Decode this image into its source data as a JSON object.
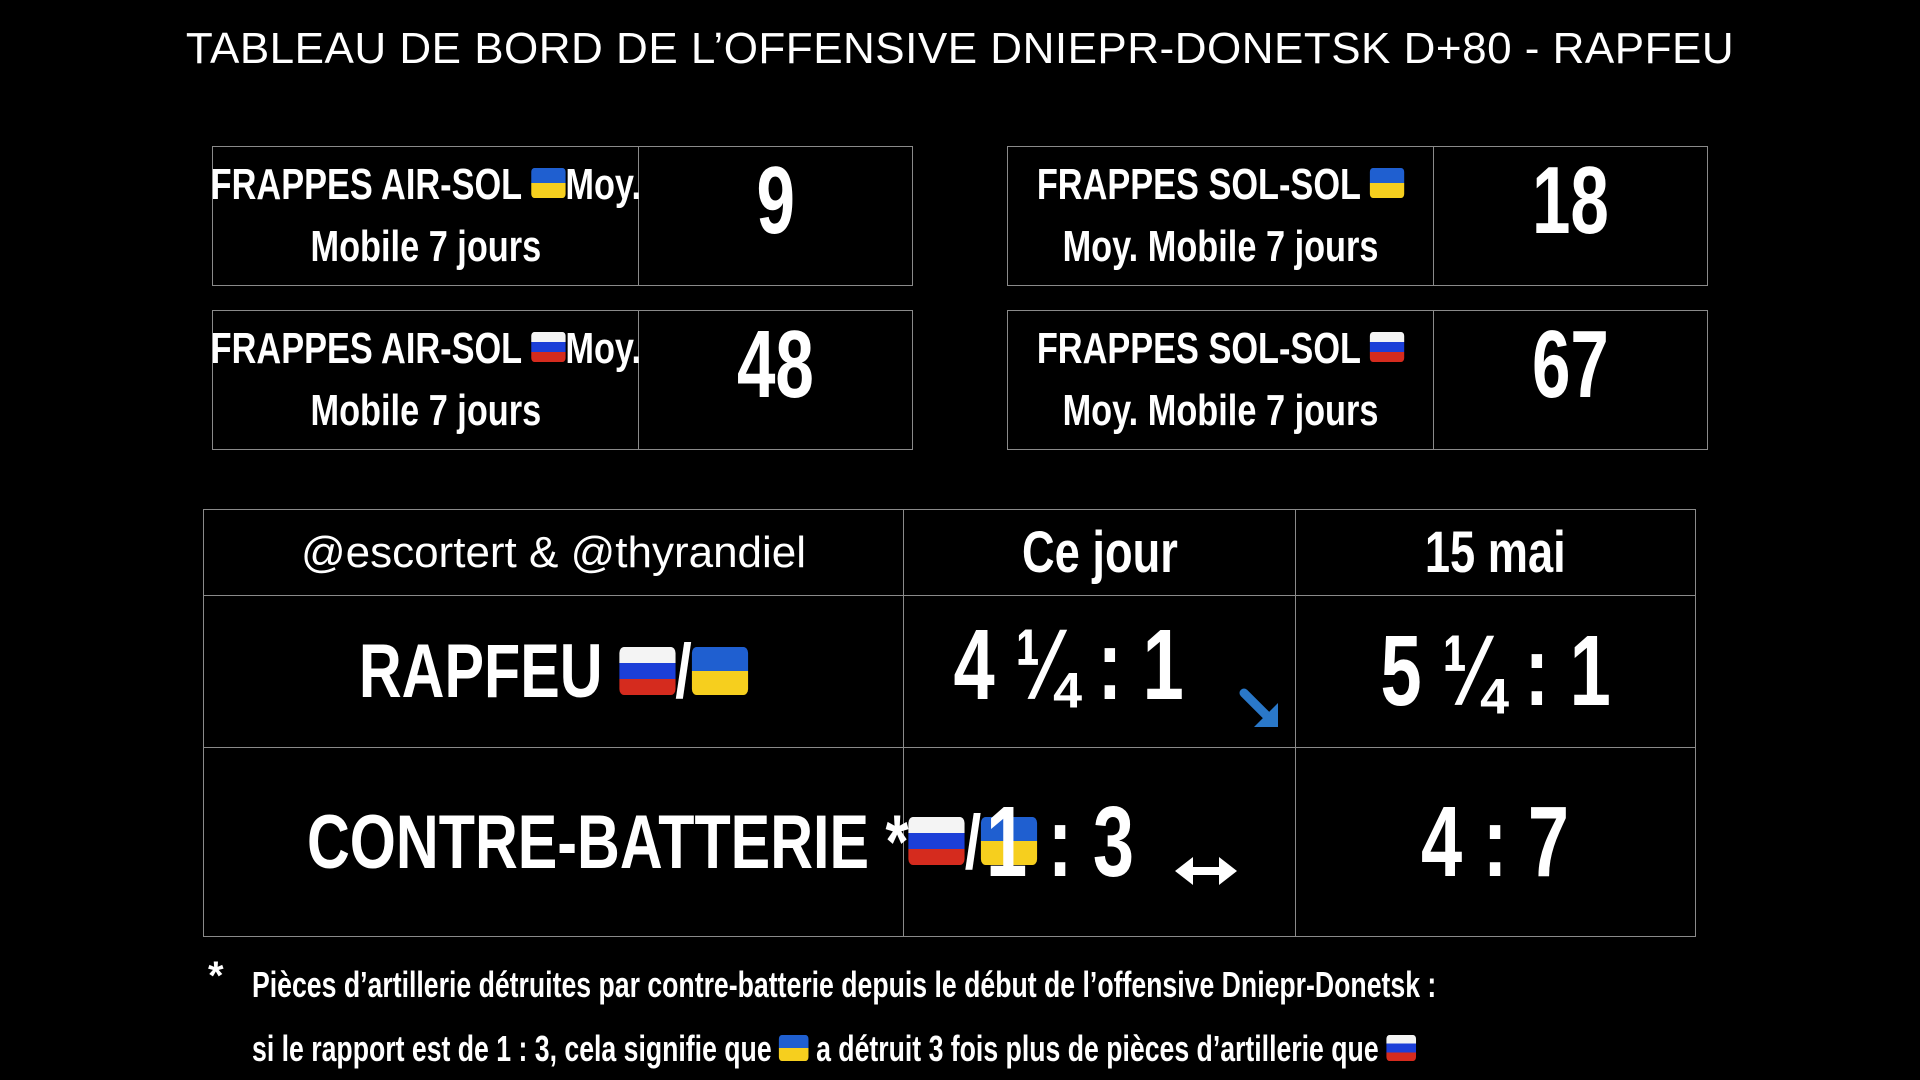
{
  "title": "TABLEAU DE BORD DE L’OFFENSIVE DNIEPR-DONETSK D+80 - RAPFEU",
  "stats": {
    "air_ua": {
      "line1": "FRAPPES AIR-SOL",
      "line1_suffix": "Moy.",
      "line2": "Mobile 7 jours",
      "value": "9",
      "flag": "ua-flag-icon"
    },
    "sol_ua": {
      "line1": "FRAPPES SOL-SOL",
      "line2": "Moy. Mobile 7 jours",
      "value": "18",
      "flag": "ua-flag-icon"
    },
    "air_ru": {
      "line1": "FRAPPES AIR-SOL",
      "line1_suffix": "Moy.",
      "line2": "Mobile 7 jours",
      "value": "48",
      "flag": "ru-flag-icon"
    },
    "sol_ru": {
      "line1": "FRAPPES SOL-SOL",
      "line2": "Moy. Mobile 7 jours",
      "value": "67",
      "flag": "ru-flag-icon"
    }
  },
  "table": {
    "handles": "@escortert & @thyrandiel",
    "col_today": "Ce jour",
    "col_date": "15 mai",
    "rapfeu": {
      "label": "RAPFEU",
      "separator": "/",
      "today": "4 ¼ : 1",
      "today_trend_icon": "arrow-down-right-icon",
      "date_value": "5 ¼  : 1"
    },
    "contre": {
      "label": "CONTRE-BATTERIE *",
      "separator": "/",
      "today": "1 : 3",
      "today_trend_icon": "arrow-left-right-icon",
      "date_value": "4 : 7"
    }
  },
  "footnote": {
    "star": "*",
    "line1": "Pièces d’artillerie détruites par contre-batterie depuis le début de l’offensive Dniepr-Donetsk :",
    "line2_part1": "si le rapport est de 1 : 3, cela signifie que",
    "line2_part2": "a détruit 3 fois plus de pièces d’artillerie que"
  },
  "colors": {
    "background": "#000000",
    "text": "#ffffff",
    "border": "#8a8a8a",
    "trend_arrow": "#2a78c9",
    "ua_blue": "#1f5fd0",
    "ua_yellow": "#f6cf1e",
    "ru_white": "#f4f4f4",
    "ru_blue": "#1c3fd8",
    "ru_red": "#d52b1e"
  }
}
